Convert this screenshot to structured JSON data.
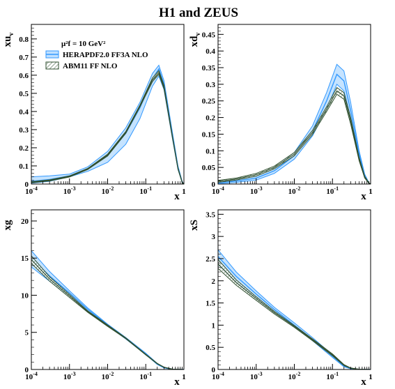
{
  "title": "H1 and ZEUS",
  "legend": {
    "scale_label": "μ²f = 10 GeV²",
    "items": [
      {
        "label": "HERAPDF2.0 FF3A NLO",
        "color": "#3399ff",
        "fill": "#bfe0ff",
        "pattern": "solid-band"
      },
      {
        "label": "ABM11 FF NLO",
        "color": "#2f4f2f",
        "fill": "#ffffff",
        "pattern": "hatched-band"
      }
    ]
  },
  "colors": {
    "hera_line": "#3399ff",
    "hera_band": "#bfe0ff",
    "abm_line": "#2f4f2f"
  },
  "chart_data": [
    {
      "type": "line",
      "panel": "top-left",
      "ylabel": "xuv",
      "xlabel": "x",
      "x_scale": "log",
      "xlim": [
        0.0001,
        1
      ],
      "ylim": [
        0,
        0.88
      ],
      "x_ticks": [
        "10-4",
        "10-3",
        "10-2",
        "10-1",
        "1"
      ],
      "y_ticks": [
        0,
        0.1,
        0.2,
        0.3,
        0.4,
        0.5,
        0.6,
        0.7,
        0.8
      ],
      "x": [
        0.0001,
        0.0003,
        0.001,
        0.003,
        0.01,
        0.03,
        0.07,
        0.15,
        0.22,
        0.3,
        0.5,
        0.7,
        0.9,
        1
      ],
      "series": [
        {
          "name": "HERAPDF2.0 FF3A NLO",
          "central": [
            0.015,
            0.025,
            0.045,
            0.085,
            0.16,
            0.28,
            0.42,
            0.58,
            0.635,
            0.55,
            0.27,
            0.09,
            0.01,
            0
          ],
          "upper": [
            0.04,
            0.045,
            0.055,
            0.095,
            0.18,
            0.31,
            0.45,
            0.61,
            0.655,
            0.57,
            0.285,
            0.1,
            0.015,
            0
          ],
          "lower": [
            0.005,
            0.015,
            0.04,
            0.07,
            0.12,
            0.22,
            0.36,
            0.54,
            0.595,
            0.52,
            0.25,
            0.08,
            0.008,
            0
          ]
        },
        {
          "name": "ABM11 FF NLO",
          "central": [
            0.01,
            0.02,
            0.042,
            0.083,
            0.16,
            0.285,
            0.43,
            0.575,
            0.615,
            0.535,
            0.26,
            0.085,
            0.01,
            0
          ],
          "upper": [
            0.013,
            0.023,
            0.045,
            0.086,
            0.165,
            0.29,
            0.435,
            0.585,
            0.625,
            0.545,
            0.265,
            0.088,
            0.012,
            0
          ],
          "lower": [
            0.007,
            0.017,
            0.039,
            0.08,
            0.155,
            0.28,
            0.425,
            0.565,
            0.605,
            0.525,
            0.255,
            0.082,
            0.008,
            0
          ]
        }
      ]
    },
    {
      "type": "line",
      "panel": "top-right",
      "ylabel": "xdv",
      "xlabel": "x",
      "x_scale": "log",
      "xlim": [
        0.0001,
        1
      ],
      "ylim": [
        0,
        0.48
      ],
      "x_ticks": [
        "10-4",
        "10-3",
        "10-2",
        "10-1",
        "1"
      ],
      "y_ticks": [
        0,
        0.05,
        0.1,
        0.15,
        0.2,
        0.25,
        0.3,
        0.35,
        0.4,
        0.45
      ],
      "x": [
        0.0001,
        0.0003,
        0.001,
        0.003,
        0.01,
        0.03,
        0.07,
        0.13,
        0.2,
        0.3,
        0.5,
        0.7,
        0.9,
        1
      ],
      "series": [
        {
          "name": "HERAPDF2.0 FF3A NLO",
          "central": [
            0.004,
            0.009,
            0.018,
            0.04,
            0.085,
            0.16,
            0.25,
            0.33,
            0.31,
            0.22,
            0.09,
            0.025,
            0.003,
            0
          ],
          "upper": [
            0.008,
            0.013,
            0.024,
            0.048,
            0.095,
            0.175,
            0.275,
            0.36,
            0.34,
            0.245,
            0.1,
            0.03,
            0.004,
            0
          ],
          "lower": [
            0.001,
            0.005,
            0.012,
            0.032,
            0.075,
            0.145,
            0.225,
            0.3,
            0.28,
            0.2,
            0.08,
            0.02,
            0.002,
            0
          ]
        },
        {
          "name": "ABM11 FF NLO",
          "central": [
            0.008,
            0.015,
            0.028,
            0.05,
            0.09,
            0.155,
            0.225,
            0.28,
            0.265,
            0.19,
            0.075,
            0.02,
            0.003,
            0
          ],
          "upper": [
            0.011,
            0.018,
            0.032,
            0.054,
            0.095,
            0.161,
            0.232,
            0.29,
            0.275,
            0.2,
            0.08,
            0.023,
            0.004,
            0
          ],
          "lower": [
            0.005,
            0.012,
            0.024,
            0.046,
            0.085,
            0.149,
            0.218,
            0.27,
            0.255,
            0.18,
            0.07,
            0.018,
            0.002,
            0
          ]
        }
      ]
    },
    {
      "type": "line",
      "panel": "bottom-left",
      "ylabel": "xg",
      "xlabel": "x",
      "x_scale": "log",
      "xlim": [
        0.0001,
        1
      ],
      "ylim": [
        0,
        21.5
      ],
      "x_ticks": [
        "10-4",
        "10-3",
        "10-2",
        "10-1",
        "1"
      ],
      "y_ticks": [
        0,
        5,
        10,
        15,
        20
      ],
      "x": [
        0.0001,
        0.0003,
        0.001,
        0.003,
        0.01,
        0.03,
        0.1,
        0.2,
        0.3,
        0.5,
        1
      ],
      "series": [
        {
          "name": "HERAPDF2.0 FF3A NLO",
          "central": [
            15.0,
            12.6,
            10.3,
            8.1,
            6.0,
            4.2,
            2.1,
            0.75,
            0.25,
            0.03,
            0
          ],
          "upper": [
            16.0,
            13.2,
            10.6,
            8.3,
            6.1,
            4.3,
            2.2,
            0.82,
            0.3,
            0.05,
            0
          ],
          "lower": [
            13.8,
            11.9,
            9.9,
            7.9,
            5.9,
            4.1,
            2.0,
            0.68,
            0.2,
            0.02,
            0
          ]
        },
        {
          "name": "ABM11 FF NLO",
          "central": [
            14.8,
            12.2,
            9.9,
            7.8,
            5.9,
            4.2,
            2.0,
            0.8,
            0.3,
            0.04,
            0
          ],
          "upper": [
            15.3,
            12.5,
            10.1,
            7.9,
            6.0,
            4.25,
            2.05,
            0.83,
            0.32,
            0.05,
            0
          ],
          "lower": [
            14.3,
            11.9,
            9.7,
            7.7,
            5.8,
            4.15,
            1.95,
            0.77,
            0.28,
            0.03,
            0
          ]
        }
      ]
    },
    {
      "type": "line",
      "panel": "bottom-right",
      "ylabel": "xS",
      "xlabel": "x",
      "x_scale": "log",
      "xlim": [
        0.0001,
        1
      ],
      "ylim": [
        0,
        3.6
      ],
      "x_ticks": [
        "10-4",
        "10-3",
        "10-2",
        "10-1",
        "1"
      ],
      "y_ticks": [
        0,
        0.5,
        1,
        1.5,
        2,
        2.5,
        3,
        3.5
      ],
      "x": [
        0.0001,
        0.0003,
        0.001,
        0.003,
        0.01,
        0.03,
        0.1,
        0.2,
        0.3,
        0.5,
        1
      ],
      "series": [
        {
          "name": "HERAPDF2.0 FF3A NLO",
          "central": [
            2.55,
            2.1,
            1.7,
            1.35,
            1.0,
            0.68,
            0.3,
            0.08,
            0.02,
            0.003,
            0
          ],
          "upper": [
            2.7,
            2.2,
            1.77,
            1.4,
            1.05,
            0.72,
            0.33,
            0.1,
            0.03,
            0.005,
            0
          ],
          "lower": [
            2.35,
            1.98,
            1.62,
            1.3,
            0.97,
            0.65,
            0.27,
            0.06,
            0.015,
            0.002,
            0
          ]
        },
        {
          "name": "ABM11 FF NLO",
          "central": [
            2.38,
            1.96,
            1.6,
            1.28,
            0.97,
            0.67,
            0.33,
            0.1,
            0.03,
            0.005,
            0
          ],
          "upper": [
            2.48,
            2.02,
            1.64,
            1.31,
            0.99,
            0.69,
            0.35,
            0.11,
            0.035,
            0.006,
            0
          ],
          "lower": [
            2.28,
            1.9,
            1.56,
            1.25,
            0.95,
            0.65,
            0.31,
            0.09,
            0.025,
            0.004,
            0
          ]
        }
      ]
    }
  ]
}
